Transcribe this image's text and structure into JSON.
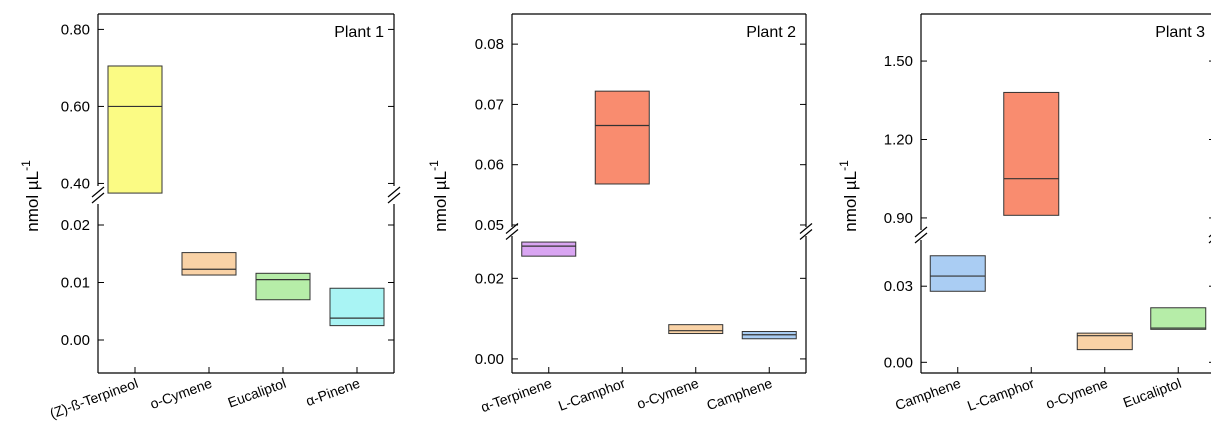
{
  "ylabel": {
    "main": "nmol µL",
    "sup": "-1"
  },
  "chart_data": [
    {
      "type": "box",
      "title": "Plant 1",
      "ylabel": "nmol µL-1",
      "axis_break": true,
      "y_upper": {
        "range": [
          0.37,
          0.84
        ],
        "ticks": [
          0.4,
          0.6,
          0.8
        ],
        "tick_labels": [
          "0.40",
          "0.60",
          "0.80"
        ]
      },
      "y_lower": {
        "range": [
          -0.004,
          0.024
        ],
        "ticks": [
          0.0,
          0.01,
          0.02
        ],
        "tick_labels": [
          "0.00",
          "0.01",
          "0.02"
        ]
      },
      "categories": [
        "(Z)-ß-Terpineol",
        "o-Cymene",
        "Eucaliptol",
        "α-Pinene"
      ],
      "boxes": [
        {
          "name": "(Z)-ß-Terpineol",
          "segment": "upper",
          "low": 0.375,
          "median": 0.6,
          "high": 0.705,
          "color": "#fbfb84"
        },
        {
          "name": "o-Cymene",
          "segment": "lower",
          "low": 0.0113,
          "median": 0.0123,
          "high": 0.0152,
          "color": "#f9d2a6"
        },
        {
          "name": "Eucaliptol",
          "segment": "lower",
          "low": 0.007,
          "median": 0.0105,
          "high": 0.0116,
          "color": "#b6eda8"
        },
        {
          "name": "α-Pinene",
          "segment": "lower",
          "low": 0.0025,
          "median": 0.0038,
          "high": 0.009,
          "color": "#a9f4f4"
        }
      ]
    },
    {
      "type": "box",
      "title": "Plant 2",
      "ylabel": "nmol µL-1",
      "axis_break": true,
      "y_upper": {
        "range": [
          0.049,
          0.085
        ],
        "ticks": [
          0.05,
          0.06,
          0.07,
          0.08
        ],
        "tick_labels": [
          "0.05",
          "0.06",
          "0.07",
          "0.08"
        ]
      },
      "y_lower": {
        "range": [
          -0.003,
          0.031
        ],
        "ticks": [
          0.0,
          0.02
        ],
        "tick_labels": [
          "0.00",
          "0.02"
        ]
      },
      "categories": [
        "α-Terpinene",
        "L-Camphor",
        "o-Cymene",
        "Camphene"
      ],
      "boxes": [
        {
          "name": "α-Terpinene",
          "segment": "lower",
          "low": 0.0255,
          "median": 0.028,
          "high": 0.029,
          "color": "#d9a5f2"
        },
        {
          "name": "L-Camphor",
          "segment": "upper",
          "low": 0.0568,
          "median": 0.0665,
          "high": 0.0722,
          "color": "#f98c6f"
        },
        {
          "name": "o-Cymene",
          "segment": "lower",
          "low": 0.0063,
          "median": 0.007,
          "high": 0.0085,
          "color": "#f9d2a6"
        },
        {
          "name": "Camphene",
          "segment": "lower",
          "low": 0.005,
          "median": 0.006,
          "high": 0.0068,
          "color": "#aacdf3"
        }
      ]
    },
    {
      "type": "box",
      "title": "Plant 3",
      "ylabel": "nmol µL-1",
      "axis_break": true,
      "y_upper": {
        "range": [
          0.85,
          1.68
        ],
        "ticks": [
          0.9,
          1.2,
          1.5
        ],
        "tick_labels": [
          "0.90",
          "1.20",
          "1.50"
        ]
      },
      "y_lower": {
        "range": [
          -0.005,
          0.049
        ],
        "ticks": [
          0.0,
          0.03
        ],
        "tick_labels": [
          "0.00",
          "0.03"
        ]
      },
      "categories": [
        "Camphene",
        "L-Camphor",
        "o-Cymene",
        "Eucaliptol"
      ],
      "boxes": [
        {
          "name": "Camphene",
          "segment": "lower",
          "low": 0.028,
          "median": 0.034,
          "high": 0.042,
          "color": "#aacdf3"
        },
        {
          "name": "L-Camphor",
          "segment": "upper",
          "low": 0.91,
          "median": 1.05,
          "high": 1.38,
          "color": "#f98c6f"
        },
        {
          "name": "o-Cymene",
          "segment": "lower",
          "low": 0.005,
          "median": 0.0105,
          "high": 0.0115,
          "color": "#f9d2a6"
        },
        {
          "name": "Eucaliptol",
          "segment": "lower",
          "low": 0.013,
          "median": 0.0135,
          "high": 0.0215,
          "color": "#b6eda8"
        }
      ]
    }
  ]
}
